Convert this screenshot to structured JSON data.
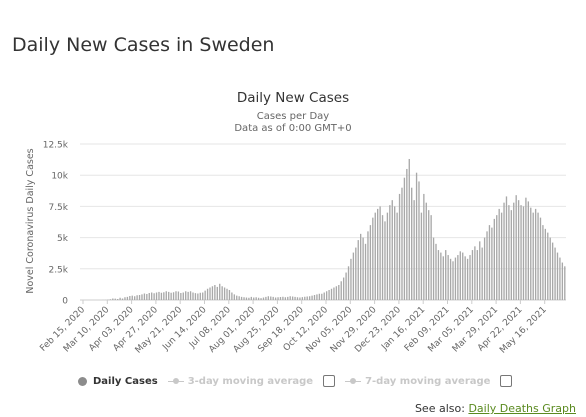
{
  "page": {
    "title": "Daily New Cases in Sweden",
    "see_also_label": "See also:",
    "see_also_link": "Daily Deaths Graph"
  },
  "legend": {
    "daily_cases": "Daily Cases",
    "moving_avg_3": "3-day moving average",
    "moving_avg_7": "7-day moving average"
  },
  "colors": {
    "bar": "#a8a8a8",
    "grid": "#e6e6e6",
    "axis_text": "#666666",
    "link": "#5a8a1f"
  },
  "chart_data": {
    "type": "bar",
    "title": "Daily New Cases",
    "subtitle_lines": [
      "Cases per Day",
      "Data as of 0:00 GMT+0"
    ],
    "ylabel": "Novel Coronavirus Daily Cases",
    "xlabel": "",
    "ylim": [
      0,
      12500
    ],
    "y_ticks": [
      0,
      2500,
      5000,
      7500,
      10000,
      12500
    ],
    "y_tick_labels": [
      "0",
      "2.5k",
      "5k",
      "7.5k",
      "10k",
      "12.5k"
    ],
    "x_tick_labels": [
      "Feb 15, 2020",
      "Mar 10, 2020",
      "Apr 03, 2020",
      "Apr 27, 2020",
      "May 21, 2020",
      "Jun 14, 2020",
      "Jul 08, 2020",
      "Aug 01, 2020",
      "Aug 25, 2020",
      "Sep 18, 2020",
      "Oct 12, 2020",
      "Nov 05, 2020",
      "Nov 29, 2020",
      "Dec 23, 2020",
      "Jan 16, 2021",
      "Feb 09, 2021",
      "Mar 05, 2021",
      "Mar 29, 2021",
      "Apr 22, 2021",
      "May 16, 2021"
    ],
    "x_start": "Feb 15, 2020",
    "x_end": "May 30, 2021",
    "grid": true,
    "legend_position": "bottom-left",
    "series": [
      {
        "name": "Daily Cases",
        "resolution": "approximate daily values (cases per day), sampled every 2 days",
        "values": [
          0,
          0,
          0,
          0,
          0,
          0,
          0,
          0,
          0,
          5,
          10,
          30,
          60,
          120,
          110,
          80,
          180,
          120,
          220,
          250,
          320,
          350,
          300,
          380,
          400,
          450,
          520,
          480,
          560,
          600,
          540,
          600,
          650,
          580,
          620,
          700,
          650,
          580,
          620,
          700,
          680,
          560,
          600,
          700,
          650,
          700,
          600,
          550,
          520,
          580,
          600,
          750,
          900,
          1000,
          1100,
          1200,
          1050,
          1300,
          1100,
          1000,
          900,
          800,
          600,
          450,
          350,
          300,
          250,
          220,
          200,
          180,
          250,
          200,
          220,
          180,
          150,
          200,
          250,
          300,
          280,
          250,
          200,
          220,
          240,
          260,
          220,
          250,
          300,
          280,
          250,
          220,
          200,
          230,
          260,
          280,
          300,
          350,
          400,
          450,
          500,
          500,
          600,
          700,
          800,
          900,
          1000,
          1100,
          1200,
          1500,
          1800,
          2200,
          2700,
          3300,
          3800,
          4200,
          4800,
          5300,
          5000,
          4500,
          5500,
          6000,
          6600,
          7000,
          7300,
          7500,
          6800,
          6300,
          7000,
          7600,
          8000,
          7500,
          7000,
          8500,
          9000,
          9800,
          10500,
          11300,
          9000,
          8000,
          10200,
          9500,
          7000,
          8500,
          7800,
          7200,
          6800,
          5000,
          4500,
          4000,
          3800,
          3500,
          4000,
          3600,
          3300,
          3100,
          3400,
          3600,
          3900,
          3800,
          3500,
          3300,
          3600,
          4000,
          4300,
          4000,
          4700,
          4200,
          5000,
          5500,
          6000,
          5800,
          6500,
          6800,
          7300,
          7000,
          7800,
          8300,
          7600,
          7200,
          7800,
          8400,
          8000,
          7600,
          7500,
          8200,
          7900,
          7400,
          7000,
          7300,
          7000,
          6600,
          6000,
          5700,
          5400,
          5000,
          4600,
          4200,
          3800,
          3400,
          3000,
          2700
        ]
      }
    ]
  }
}
